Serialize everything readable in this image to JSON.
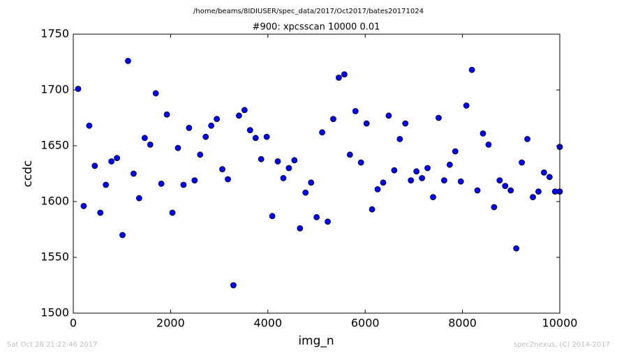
{
  "chart_data": {
    "type": "line",
    "suptitle": "/home/beams/8IDIUSER/spec_data/2017/Oct2017/bates20171024",
    "title": "#900: xpcsscan 10000 0.01",
    "xlabel": "img_n",
    "ylabel": "ccdc",
    "footer_left": "Sat Oct 28 21:22:46 2017",
    "footer_right": "spec2nexus, (C) 2014-2017",
    "color": "#0000ff",
    "marker": "o",
    "grid": false,
    "xlim": [
      0,
      10000
    ],
    "ylim": [
      1500,
      1750
    ],
    "xticks": [
      0,
      2000,
      4000,
      6000,
      8000,
      10000
    ],
    "yticks": [
      1500,
      1550,
      1600,
      1650,
      1700,
      1750
    ],
    "x": [
      100,
      214,
      328,
      442,
      556,
      670,
      784,
      898,
      1012,
      1126,
      1240,
      1354,
      1468,
      1582,
      1696,
      1810,
      1924,
      2038,
      2152,
      2266,
      2380,
      2494,
      2608,
      2722,
      2836,
      2950,
      3064,
      3178,
      3292,
      3406,
      3520,
      3634,
      3748,
      3862,
      3976,
      4090,
      4204,
      4318,
      4432,
      4546,
      4660,
      4774,
      4888,
      5002,
      5116,
      5230,
      5344,
      5458,
      5572,
      5686,
      5800,
      5914,
      6028,
      6142,
      6256,
      6370,
      6484,
      6598,
      6712,
      6826,
      6940,
      7054,
      7168,
      7282,
      7396,
      7510,
      7624,
      7738,
      7852,
      7966,
      8080,
      8194,
      8308,
      8422,
      8536,
      8650,
      8764,
      8878,
      8992,
      9106,
      9220,
      9334,
      9448,
      9562,
      9676,
      9790,
      9904,
      10000,
      10000
    ],
    "values": [
      1701,
      1596,
      1668,
      1632,
      1590,
      1615,
      1636,
      1639,
      1570,
      1726,
      1625,
      1603,
      1657,
      1651,
      1697,
      1616,
      1678,
      1590,
      1648,
      1615,
      1666,
      1619,
      1642,
      1658,
      1668,
      1674,
      1629,
      1620,
      1525,
      1677,
      1682,
      1664,
      1657,
      1638,
      1658,
      1587,
      1636,
      1621,
      1630,
      1637,
      1576,
      1608,
      1617,
      1586,
      1662,
      1582,
      1674,
      1711,
      1714,
      1642,
      1681,
      1635,
      1670,
      1593,
      1611,
      1617,
      1677,
      1628,
      1656,
      1670,
      1619,
      1627,
      1621,
      1630,
      1604,
      1675,
      1619,
      1633,
      1645,
      1618,
      1686,
      1718,
      1610,
      1661,
      1651,
      1595,
      1619,
      1614,
      1610,
      1558,
      1635,
      1656,
      1604,
      1609,
      1626,
      1622,
      1609,
      1609,
      1649
    ]
  }
}
